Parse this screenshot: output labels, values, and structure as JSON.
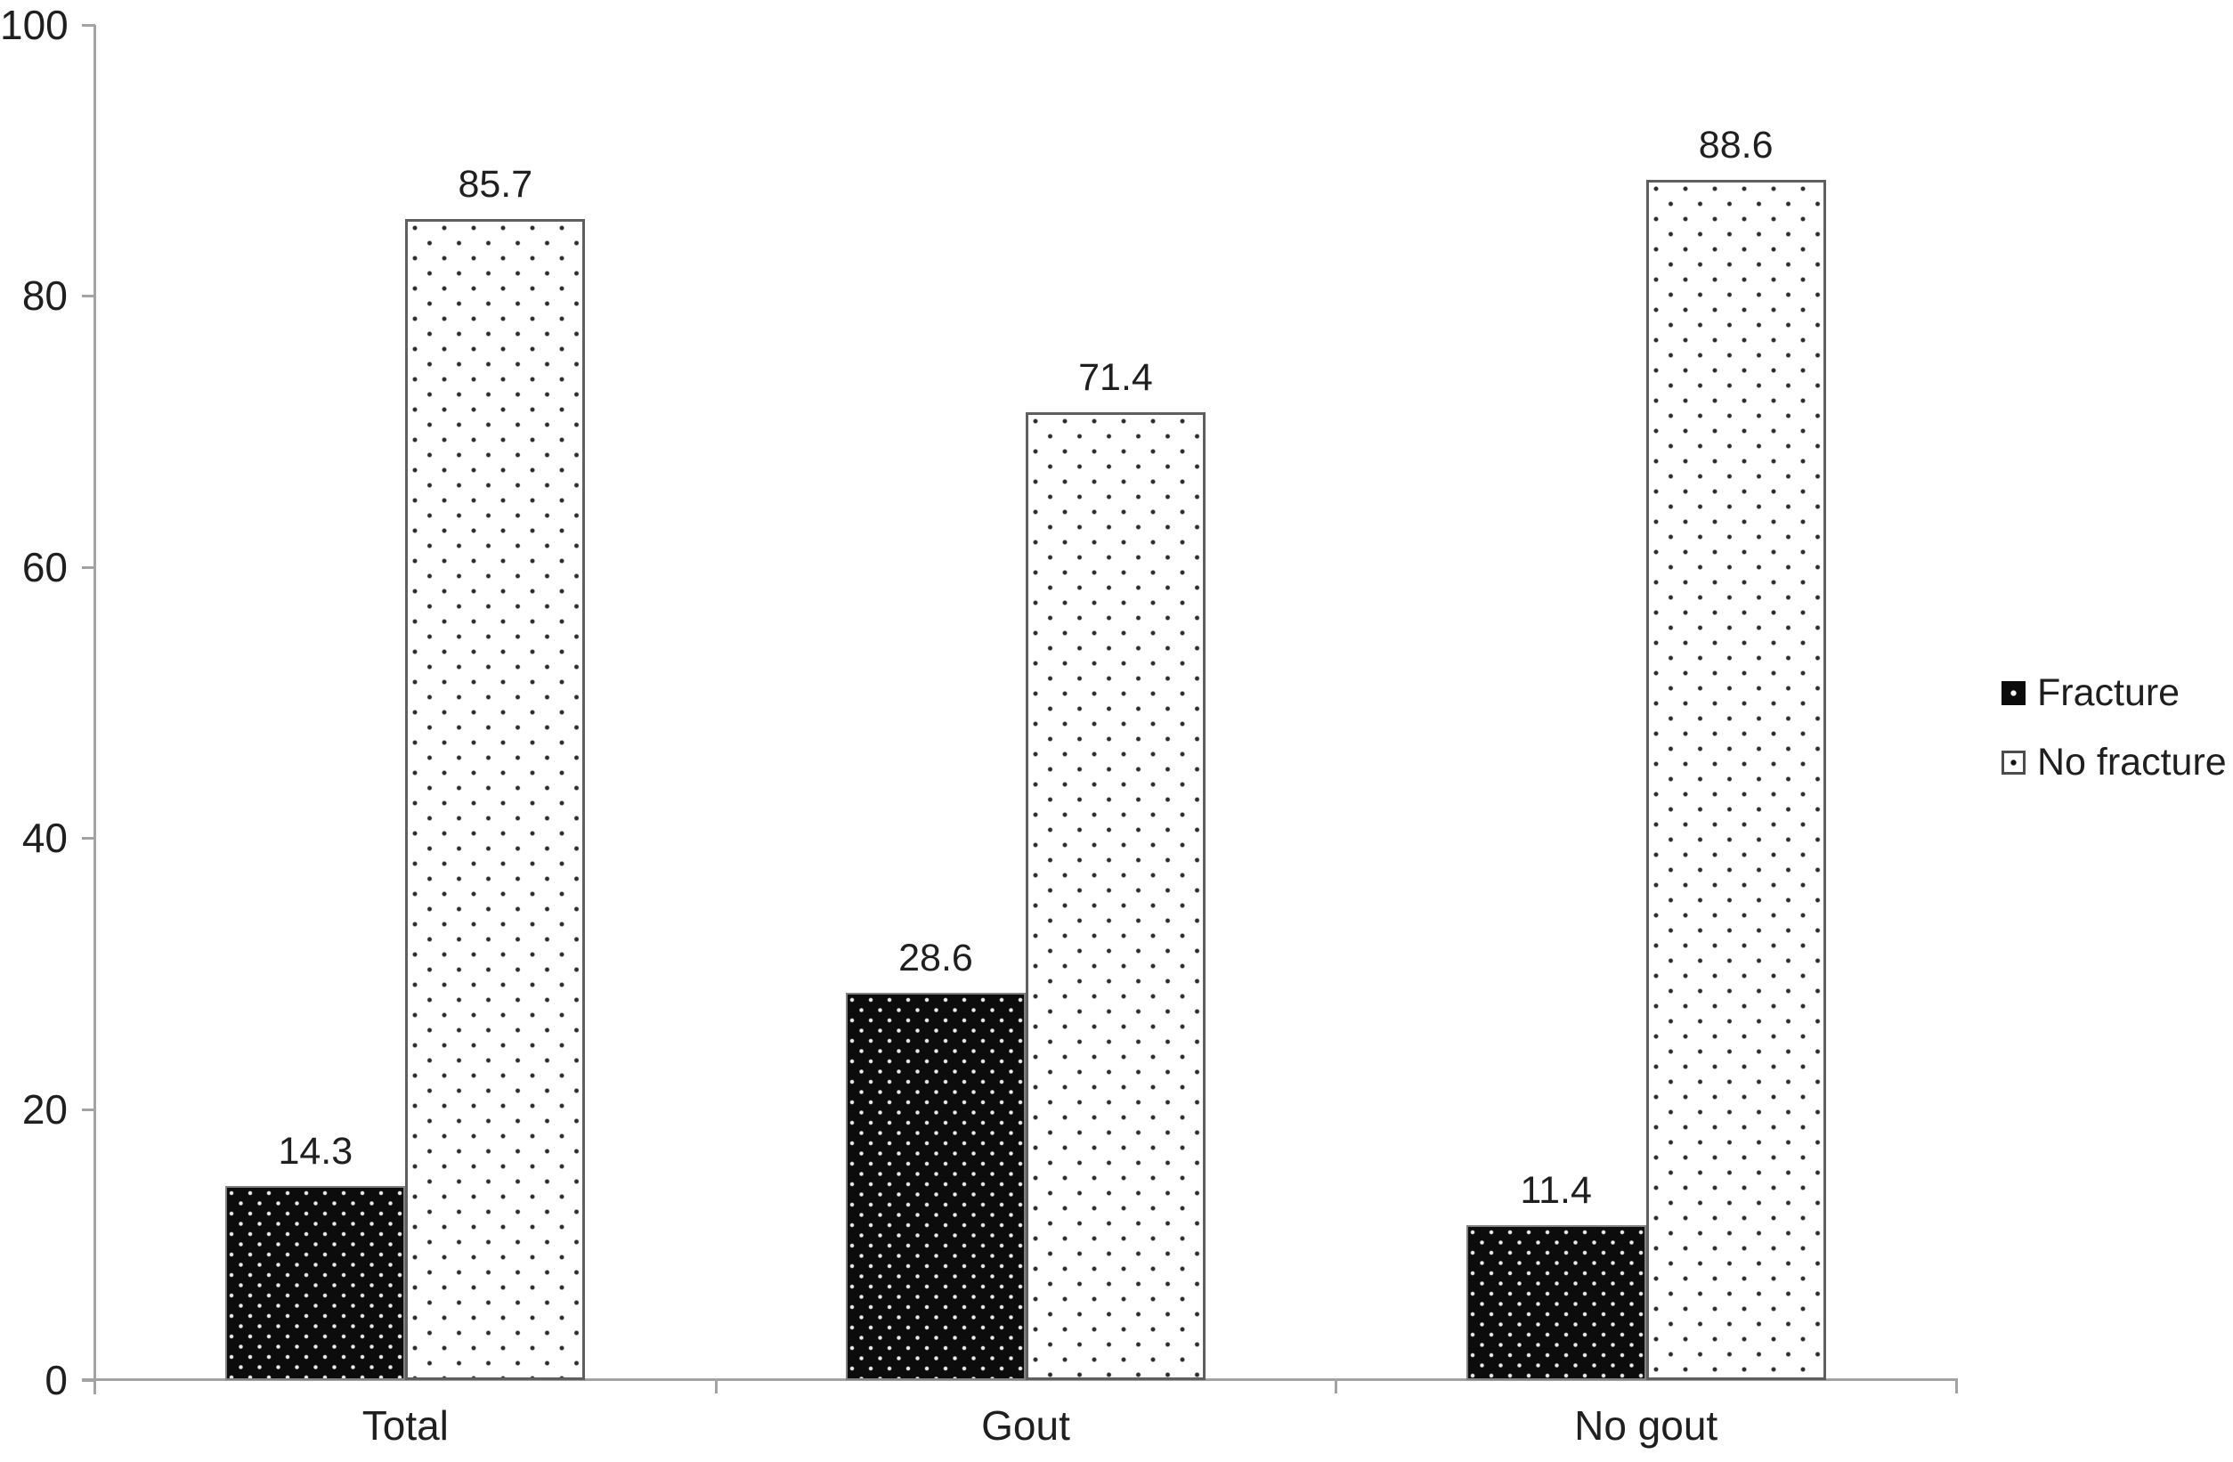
{
  "chart_data": {
    "type": "bar",
    "categories": [
      "Total",
      "Gout",
      "No gout"
    ],
    "series": [
      {
        "name": "Fracture",
        "values": [
          14.3,
          28.6,
          11.4
        ],
        "value_labels": [
          "14.3",
          "28.6",
          "11.4"
        ],
        "fill": "black-white-dotted",
        "color": "#0c0c0c"
      },
      {
        "name": "No fracture",
        "values": [
          85.7,
          71.4,
          88.6
        ],
        "value_labels": [
          "85.7",
          "71.4",
          "88.6"
        ],
        "fill": "white-black-dotted",
        "color": "#ffffff"
      }
    ],
    "title": "",
    "xlabel": "",
    "ylabel": "",
    "ylim": [
      0,
      100
    ],
    "yticks": [
      0,
      20,
      40,
      60,
      80,
      100
    ],
    "grid": false,
    "legend_position": "right",
    "value_labels_shown": true,
    "axis_color": "#a3a3a3"
  }
}
